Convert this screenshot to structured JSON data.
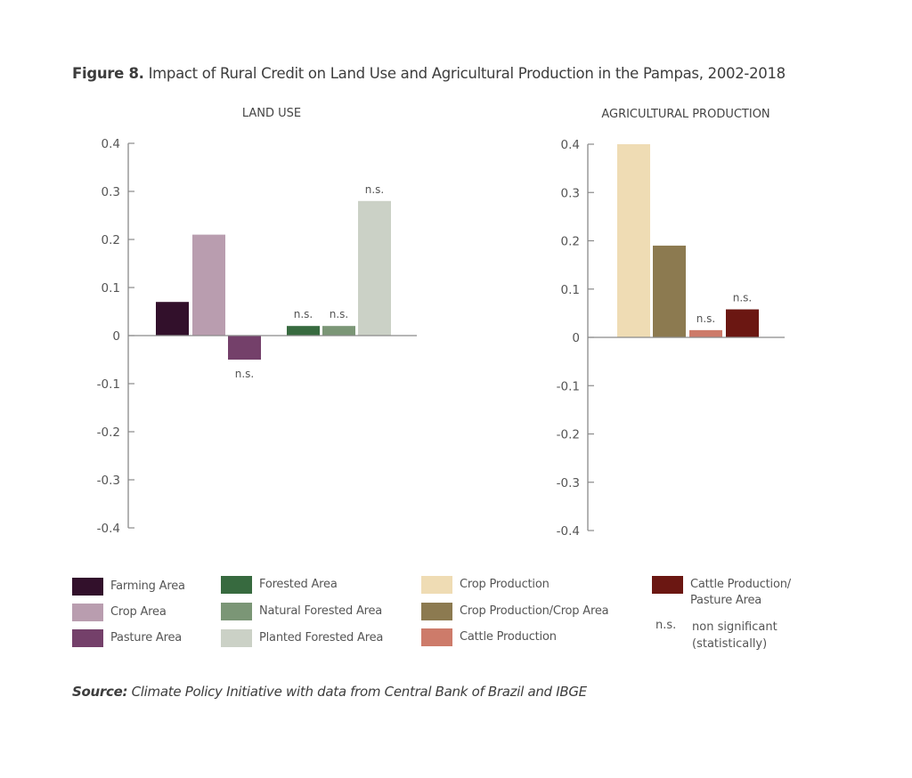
{
  "figure": {
    "label": "Figure 8.",
    "title": "Impact of Rural Credit on Land Use and Agricultural Production in the Pampas, 2002-2018"
  },
  "source": {
    "label": "Source:",
    "text": "Climate Policy Initiative with data from Central Bank of Brazil and IBGE"
  },
  "chart_data": [
    {
      "type": "bar",
      "title": "LAND USE",
      "xlabel": "",
      "ylabel": "",
      "ylim": [
        -0.4,
        0.4
      ],
      "yticks": [
        0.4,
        0.3,
        0.2,
        0.1,
        0,
        -0.1,
        -0.2,
        -0.3,
        -0.4
      ],
      "ytick_labels": [
        "0.4",
        "0.3",
        "0.2",
        "0.1",
        "0",
        "-0.1",
        "-0.2",
        "-0.3",
        "-0.4"
      ],
      "grid": false,
      "groups": [
        [
          "Farming Area",
          "Crop Area",
          "Pasture Area"
        ],
        [
          "Forested Area",
          "Natural Forested Area",
          "Planted Forested Area"
        ]
      ],
      "categories": [
        "Farming Area",
        "Crop Area",
        "Pasture Area",
        "Forested Area",
        "Natural Forested Area",
        "Planted Forested Area"
      ],
      "values": [
        0.07,
        0.21,
        -0.05,
        0.02,
        0.02,
        0.28
      ],
      "colors": [
        "#32102b",
        "#b99daf",
        "#74406a",
        "#376a3f",
        "#7b9676",
        "#cbd1c6"
      ],
      "annotations": [
        "",
        "",
        "n.s.",
        "n.s.",
        "n.s.",
        "n.s."
      ]
    },
    {
      "type": "bar",
      "title": "AGRICULTURAL PRODUCTION",
      "xlabel": "",
      "ylabel": "",
      "ylim": [
        -0.4,
        0.4
      ],
      "yticks": [
        0.4,
        0.3,
        0.2,
        0.1,
        0,
        -0.1,
        -0.2,
        -0.3,
        -0.4
      ],
      "ytick_labels": [
        "0.4",
        "0.3",
        "0.2",
        "0.1",
        "0",
        "-0.1",
        "-0.2",
        "-0.3",
        "-0.4"
      ],
      "grid": false,
      "categories": [
        "Crop Production",
        "Crop Production/Crop Area",
        "Cattle Production",
        "Cattle Production/Pasture Area"
      ],
      "values": [
        0.4,
        0.19,
        0.015,
        0.058
      ],
      "colors": [
        "#efdcb4",
        "#8c7a50",
        "#cd7b6a",
        "#6b1712"
      ],
      "annotations": [
        "",
        "",
        "n.s.",
        "n.s."
      ]
    }
  ],
  "legend": {
    "items": [
      {
        "label": "Farming Area",
        "color": "#32102b"
      },
      {
        "label": "Crop Area",
        "color": "#b99daf"
      },
      {
        "label": "Pasture Area",
        "color": "#74406a"
      },
      {
        "label": "Forested Area",
        "color": "#376a3f"
      },
      {
        "label": "Natural Forested Area",
        "color": "#7b9676"
      },
      {
        "label": "Planted Forested Area",
        "color": "#cbd1c6"
      },
      {
        "label": "Crop Production",
        "color": "#efdcb4"
      },
      {
        "label": "Crop Production/Crop Area",
        "color": "#8c7a50"
      },
      {
        "label": "Cattle Production",
        "color": "#cd7b6a"
      },
      {
        "label": "Cattle Production/\nPasture Area",
        "color": "#6b1712"
      }
    ],
    "ns_key": {
      "symbol": "n.s.",
      "definition": "non significant\n(statistically)"
    }
  }
}
